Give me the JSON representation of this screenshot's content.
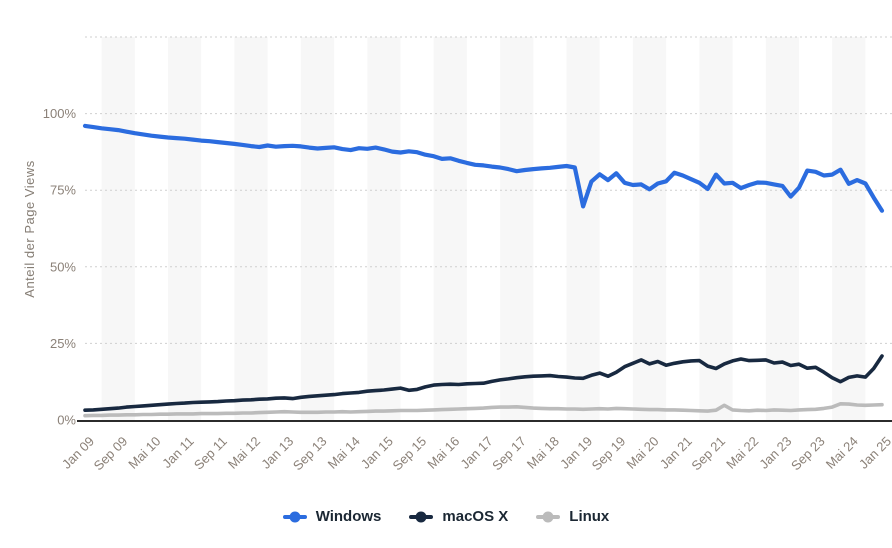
{
  "style": {
    "background_color": "#ffffff",
    "stripe_color": "#f7f7f7",
    "grid_color": "#cfcfcf",
    "axis_line_color": "#2b2b2b",
    "tick_label_color": "#8b8178",
    "legend_text_color": "#1b2733"
  },
  "chart_data": {
    "type": "line",
    "title": "",
    "ylabel": "Anteil der Page Views",
    "xlabel": "",
    "ylim": [
      0,
      125
    ],
    "xlim": [
      0,
      192
    ],
    "grid": "horizontal dotted",
    "legend_position": "bottom",
    "x_unit": "months since Jan 2009, monthly data sampled every 2 months",
    "x": [
      0,
      2,
      4,
      6,
      8,
      10,
      12,
      14,
      16,
      18,
      20,
      22,
      24,
      26,
      28,
      30,
      32,
      34,
      36,
      38,
      40,
      42,
      44,
      46,
      48,
      50,
      52,
      54,
      56,
      58,
      60,
      62,
      64,
      66,
      68,
      70,
      72,
      74,
      76,
      78,
      80,
      82,
      84,
      86,
      88,
      90,
      92,
      94,
      96,
      98,
      100,
      102,
      104,
      106,
      108,
      110,
      112,
      114,
      116,
      118,
      120,
      122,
      124,
      126,
      128,
      130,
      132,
      134,
      136,
      138,
      140,
      142,
      144,
      146,
      148,
      150,
      152,
      154,
      156,
      158,
      160,
      162,
      164,
      166,
      168,
      170,
      172,
      174,
      176,
      178,
      180,
      182,
      184,
      186,
      188,
      190,
      192
    ],
    "x_tick_positions": [
      0,
      8,
      16,
      24,
      32,
      40,
      48,
      56,
      64,
      72,
      80,
      88,
      96,
      104,
      112,
      120,
      128,
      136,
      144,
      152,
      160,
      168,
      176,
      184,
      192
    ],
    "x_tick_labels": [
      "Jan 09",
      "Sep 09",
      "Mai 10",
      "Jan 11",
      "Sep 11",
      "Mai 12",
      "Jan 13",
      "Sep 13",
      "Mai 14",
      "Jan 15",
      "Sep 15",
      "Mai 16",
      "Jan 17",
      "Sep 17",
      "Mai 18",
      "Jan 19",
      "Sep 19",
      "Mai 20",
      "Jan 21",
      "Sep 21",
      "Mai 22",
      "Jan 23",
      "Sep 23",
      "Mai 24",
      "Jan 25"
    ],
    "y_ticks": [
      {
        "value": 0,
        "label": "0%"
      },
      {
        "value": 25,
        "label": "25%"
      },
      {
        "value": 50,
        "label": "50%"
      },
      {
        "value": 75,
        "label": "75%"
      },
      {
        "value": 100,
        "label": "100%"
      },
      {
        "value": 125,
        "label": ""
      }
    ],
    "series": [
      {
        "name": "Windows",
        "color": "#2b6cdf",
        "values": [
          96.0,
          95.6,
          95.2,
          94.9,
          94.6,
          94.1,
          93.6,
          93.2,
          92.8,
          92.5,
          92.2,
          92.0,
          91.8,
          91.5,
          91.2,
          91.0,
          90.7,
          90.4,
          90.1,
          89.8,
          89.4,
          89.1,
          89.6,
          89.2,
          89.4,
          89.5,
          89.3,
          88.9,
          88.6,
          88.8,
          89.0,
          88.4,
          88.1,
          88.7,
          88.5,
          88.9,
          88.3,
          87.6,
          87.3,
          87.7,
          87.4,
          86.6,
          86.1,
          85.2,
          85.4,
          84.6,
          83.9,
          83.3,
          83.1,
          82.7,
          82.4,
          81.9,
          81.2,
          81.6,
          81.9,
          82.1,
          82.3,
          82.6,
          82.9,
          82.4,
          69.7,
          77.8,
          80.2,
          78.3,
          80.5,
          77.4,
          76.7,
          76.9,
          75.3,
          77.2,
          77.9,
          80.7,
          79.8,
          78.6,
          77.4,
          75.4,
          80.1,
          77.2,
          77.4,
          75.7,
          76.7,
          77.5,
          77.4,
          76.9,
          76.4,
          72.9,
          75.8,
          81.4,
          81.0,
          79.8,
          80.1,
          81.7,
          77.1,
          78.3,
          77.2,
          72.6,
          68.3
        ]
      },
      {
        "name": "macOS X",
        "color": "#182940",
        "values": [
          3.2,
          3.3,
          3.5,
          3.7,
          3.9,
          4.2,
          4.4,
          4.6,
          4.8,
          5.0,
          5.2,
          5.4,
          5.5,
          5.7,
          5.8,
          5.9,
          6.0,
          6.2,
          6.3,
          6.5,
          6.6,
          6.8,
          6.9,
          7.1,
          7.2,
          7.0,
          7.4,
          7.7,
          7.9,
          8.1,
          8.3,
          8.6,
          8.8,
          9.0,
          9.4,
          9.6,
          9.8,
          10.1,
          10.4,
          9.7,
          10.0,
          10.8,
          11.4,
          11.6,
          11.7,
          11.6,
          11.8,
          11.9,
          12.0,
          12.6,
          13.1,
          13.4,
          13.8,
          14.1,
          14.3,
          14.4,
          14.5,
          14.2,
          14.0,
          13.7,
          13.6,
          14.6,
          15.3,
          14.3,
          15.6,
          17.4,
          18.5,
          19.6,
          18.3,
          19.1,
          17.9,
          18.5,
          19.0,
          19.3,
          19.4,
          17.6,
          16.8,
          18.3,
          19.3,
          19.9,
          19.4,
          19.5,
          19.6,
          18.6,
          18.9,
          17.8,
          18.2,
          16.9,
          17.2,
          15.6,
          13.8,
          12.5,
          13.9,
          14.4,
          14.0,
          16.8,
          20.9
        ]
      },
      {
        "name": "Linux",
        "color": "#bbbbbb",
        "values": [
          1.4,
          1.5,
          1.5,
          1.6,
          1.6,
          1.7,
          1.7,
          1.8,
          1.8,
          1.9,
          1.9,
          2.0,
          2.0,
          2.0,
          2.1,
          2.1,
          2.1,
          2.2,
          2.2,
          2.3,
          2.3,
          2.4,
          2.5,
          2.6,
          2.7,
          2.6,
          2.5,
          2.5,
          2.5,
          2.6,
          2.6,
          2.7,
          2.6,
          2.7,
          2.8,
          2.9,
          2.9,
          3.0,
          3.1,
          3.1,
          3.1,
          3.2,
          3.3,
          3.4,
          3.5,
          3.6,
          3.7,
          3.8,
          3.9,
          4.1,
          4.2,
          4.2,
          4.3,
          4.1,
          3.9,
          3.8,
          3.7,
          3.7,
          3.6,
          3.6,
          3.5,
          3.6,
          3.7,
          3.6,
          3.8,
          3.7,
          3.6,
          3.5,
          3.4,
          3.4,
          3.3,
          3.3,
          3.2,
          3.1,
          3.0,
          2.9,
          3.2,
          4.8,
          3.3,
          3.1,
          3.0,
          3.2,
          3.1,
          3.3,
          3.2,
          3.1,
          3.3,
          3.4,
          3.5,
          3.8,
          4.2,
          5.3,
          5.2,
          4.9,
          4.8,
          4.9,
          5.0
        ]
      }
    ]
  }
}
